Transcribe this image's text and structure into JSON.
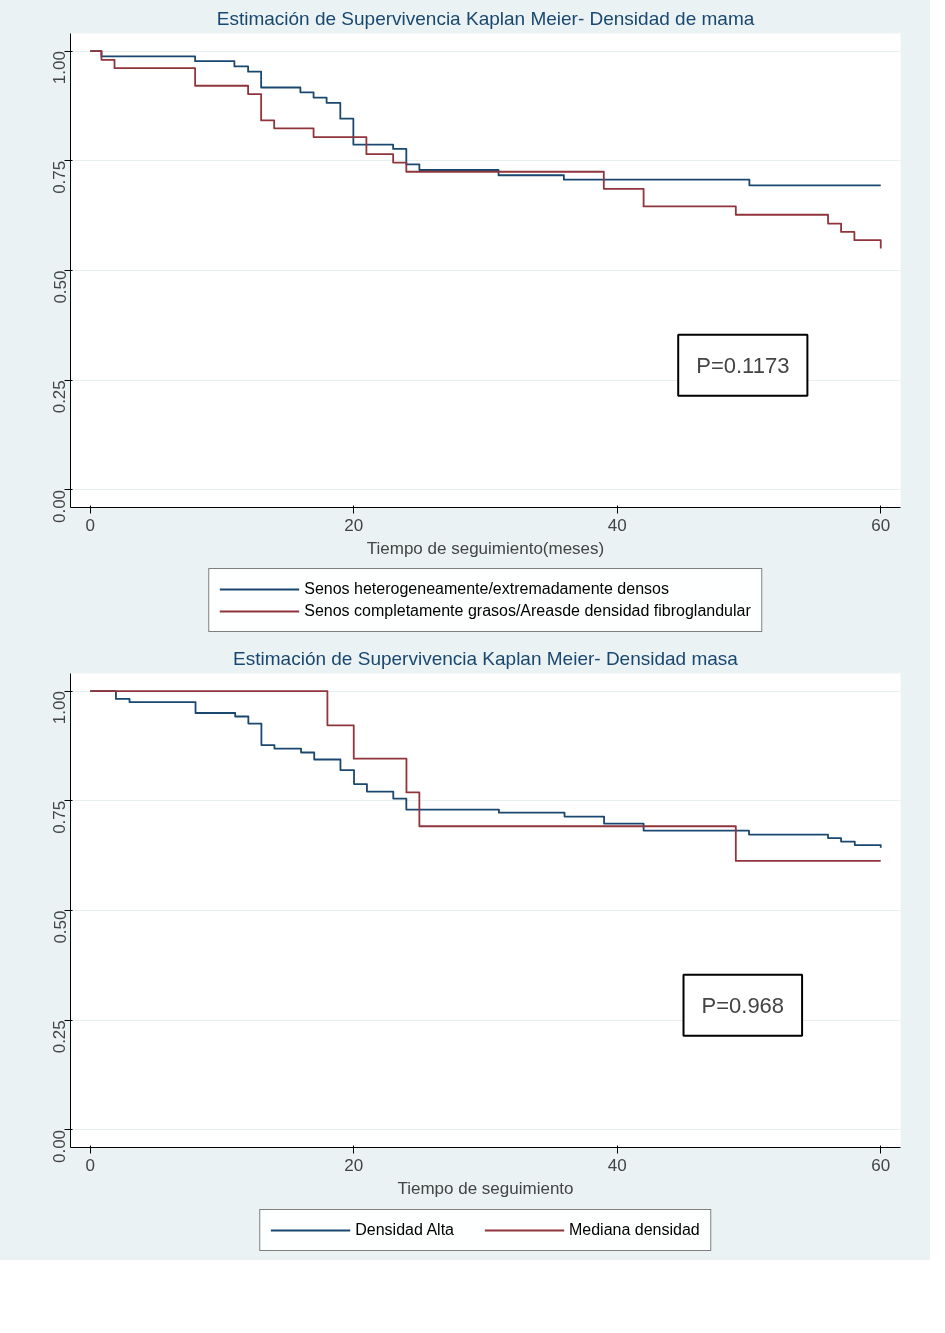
{
  "chart_data": [
    {
      "type": "step",
      "title": "Estimación de Supervivencia Kaplan Meier- Densidad de mama",
      "xlabel": "Tiempo de seguimiento(meses)",
      "xlim": [
        -1.5,
        61.5
      ],
      "xticks": [
        0,
        20,
        40,
        60
      ],
      "ylim": [
        -0.04,
        1.04
      ],
      "yticks": [
        {
          "value": 0,
          "label": "0.00"
        },
        {
          "value": 0.25,
          "label": "0.25"
        },
        {
          "value": 0.5,
          "label": "0.50"
        },
        {
          "value": 0.75,
          "label": "0.75"
        },
        {
          "value": 1,
          "label": "1.00"
        }
      ],
      "grid": "y",
      "legend": "bottom",
      "annotations": [
        "P=0.1173"
      ],
      "series": [
        {
          "name": "Senos heterogeneamente/extremadamente densos",
          "color": "#1a476f",
          "x": [
            0,
            0.85,
            7.96,
            10.94,
            11.98,
            12.97,
            15.95,
            16.95,
            17.94,
            18.98,
            19.97,
            22.99,
            23.99,
            24.98,
            30.99,
            35.95,
            50.03,
            60
          ],
          "values": [
            1.0,
            0.988,
            0.977,
            0.965,
            0.953,
            0.917,
            0.906,
            0.894,
            0.882,
            0.846,
            0.787,
            0.777,
            0.742,
            0.729,
            0.717,
            0.707,
            0.694,
            0.694
          ]
        },
        {
          "name": "Senos completamente grasos/Areasde densidad fibroglandular",
          "color": "#90353b",
          "x": [
            0,
            0.85,
            1.84,
            7.96,
            11.98,
            12.97,
            13.96,
            16.95,
            20.96,
            22.99,
            23.99,
            38.98,
            42.0,
            49.0,
            56.0,
            56.99,
            58.0,
            60
          ],
          "values": [
            1.0,
            0.98,
            0.961,
            0.921,
            0.902,
            0.842,
            0.824,
            0.804,
            0.765,
            0.746,
            0.725,
            0.686,
            0.646,
            0.627,
            0.607,
            0.588,
            0.569,
            0.55
          ]
        }
      ]
    },
    {
      "type": "step",
      "title": "Estimación de Supervivencia Kaplan Meier- Densidad masa",
      "xlabel": "Tiempo de seguimiento",
      "xlim": [
        -1.5,
        61.5
      ],
      "xticks": [
        0,
        20,
        40,
        60
      ],
      "ylim": [
        -0.04,
        1.04
      ],
      "yticks": [
        {
          "value": 0,
          "label": "0.00"
        },
        {
          "value": 0.25,
          "label": "0.25"
        },
        {
          "value": 0.5,
          "label": "0.50"
        },
        {
          "value": 0.75,
          "label": "0.75"
        },
        {
          "value": 1,
          "label": "1.00"
        }
      ],
      "grid": "y",
      "legend": "bottom",
      "annotations": [
        "P=0.968"
      ],
      "series": [
        {
          "name": "Densidad Alta",
          "color": "#1a476f",
          "x": [
            0,
            1.95,
            2.98,
            7.99,
            11.0,
            12.0,
            12.99,
            13.98,
            16.0,
            17.0,
            18.99,
            20.02,
            21.0,
            23.0,
            23.99,
            31.02,
            36.0,
            39.0,
            42.0,
            50.0,
            56.0,
            56.99,
            58.03,
            60
          ],
          "values": [
            1.0,
            0.982,
            0.975,
            0.95,
            0.942,
            0.926,
            0.877,
            0.869,
            0.86,
            0.844,
            0.82,
            0.788,
            0.771,
            0.755,
            0.73,
            0.723,
            0.714,
            0.698,
            0.682,
            0.673,
            0.665,
            0.657,
            0.649,
            0.643
          ]
        },
        {
          "name": "Mediana densidad",
          "color": "#90353b",
          "x": [
            0,
            18.0,
            20.0,
            24.0,
            24.98,
            49.0,
            60
          ],
          "values": [
            1.0,
            0.922,
            0.846,
            0.769,
            0.692,
            0.613,
            0.613
          ]
        }
      ]
    }
  ]
}
